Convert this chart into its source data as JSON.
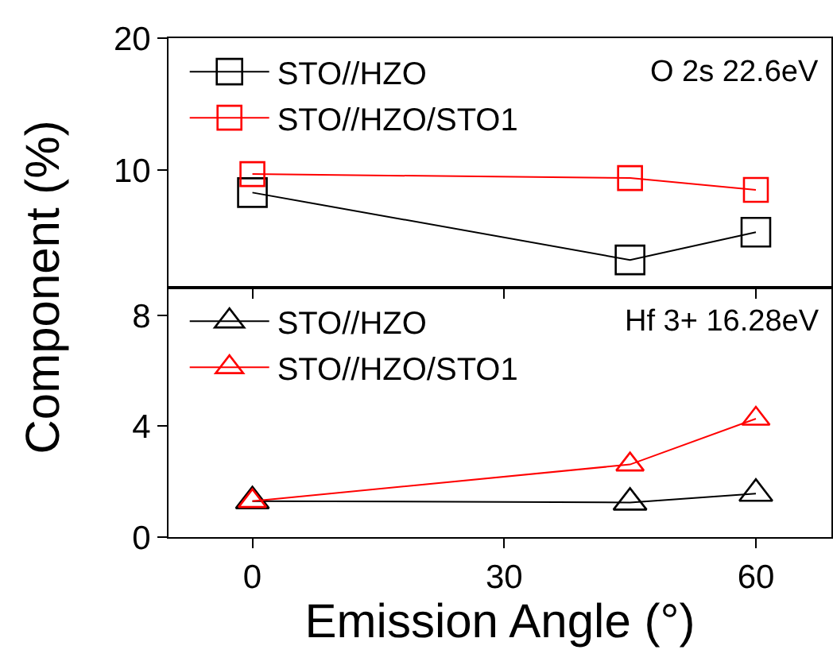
{
  "chart_data": [
    {
      "type": "line",
      "ylabel": "Component (%)",
      "x": [
        0,
        45,
        60
      ],
      "xlim": [
        -10,
        69
      ],
      "xticks": [
        0,
        30,
        60
      ],
      "ylim": [
        1.1,
        20
      ],
      "yticks": [
        10,
        20
      ],
      "tick_labels": "y",
      "marker": "square",
      "legend": "top left",
      "grid": false,
      "series": [
        {
          "name": "STO//HZO",
          "color": "#000000",
          "values": [
            8.3,
            3.2,
            5.3
          ]
        },
        {
          "name": "STO//HZO/STO1",
          "color": "#ff0000",
          "values": [
            9.7,
            9.4,
            8.5
          ]
        }
      ],
      "annotations": [
        "O 2s 22.6eV"
      ]
    },
    {
      "type": "line",
      "xlabel": "Emission Angle (°)",
      "x": [
        0,
        45,
        60
      ],
      "xlim": [
        -10,
        69
      ],
      "xticks": [
        0,
        30,
        60
      ],
      "ylim": [
        0,
        9
      ],
      "yticks": [
        0,
        4,
        8
      ],
      "marker": "triangle",
      "legend": "top left",
      "grid": false,
      "series": [
        {
          "name": "STO//HZO",
          "color": "#000000",
          "values": [
            1.3,
            1.25,
            1.57
          ]
        },
        {
          "name": "STO//HZO/STO1",
          "color": "#ff0000",
          "values": [
            1.3,
            2.62,
            4.27
          ]
        }
      ],
      "annotations": [
        "Hf 3+ 16.28eV"
      ]
    }
  ]
}
